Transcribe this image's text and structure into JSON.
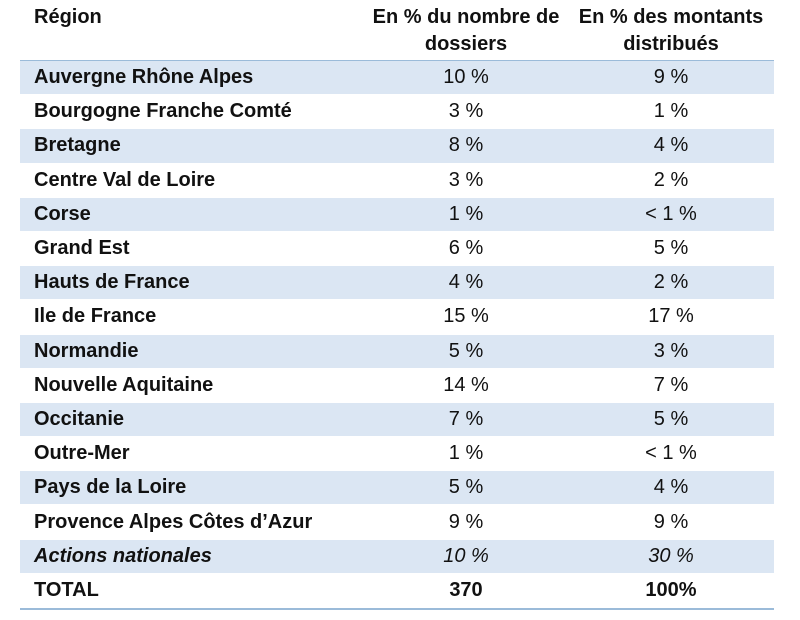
{
  "table": {
    "headers": {
      "region": "Région",
      "dossiers": "En % du nombre de dossiers",
      "montants": "En % des montants distribués"
    },
    "rows": [
      {
        "region": "Auvergne Rhône Alpes",
        "dossiers": "10 %",
        "montants": "9 %"
      },
      {
        "region": "Bourgogne Franche Comté",
        "dossiers": "3 %",
        "montants": "1 %"
      },
      {
        "region": "Bretagne",
        "dossiers": "8 %",
        "montants": "4 %"
      },
      {
        "region": "Centre Val de Loire",
        "dossiers": "3 %",
        "montants": "2 %"
      },
      {
        "region": "Corse",
        "dossiers": "1 %",
        "montants": "< 1 %"
      },
      {
        "region": "Grand Est",
        "dossiers": "6 %",
        "montants": "5 %"
      },
      {
        "region": "Hauts de France",
        "dossiers": "4 %",
        "montants": "2 %"
      },
      {
        "region": "Ile de France",
        "dossiers": "15 %",
        "montants": "17 %"
      },
      {
        "region": "Normandie",
        "dossiers": "5 %",
        "montants": "3 %"
      },
      {
        "region": "Nouvelle Aquitaine",
        "dossiers": "14 %",
        "montants": "7 %"
      },
      {
        "region": "Occitanie",
        "dossiers": "7 %",
        "montants": "5 %"
      },
      {
        "region": "Outre-Mer",
        "dossiers": "1 %",
        "montants": "< 1 %"
      },
      {
        "region": "Pays de la Loire",
        "dossiers": "5 %",
        "montants": "4 %"
      },
      {
        "region": "Provence Alpes Côtes d’Azur",
        "dossiers": "9 %",
        "montants": "9 %"
      },
      {
        "region": "Actions nationales",
        "dossiers": "10 %",
        "montants": "30 %"
      },
      {
        "region": "TOTAL",
        "dossiers": "370",
        "montants": "100%"
      }
    ]
  },
  "colors": {
    "band": "#dbe6f3",
    "rule": "#9bbbd9"
  }
}
